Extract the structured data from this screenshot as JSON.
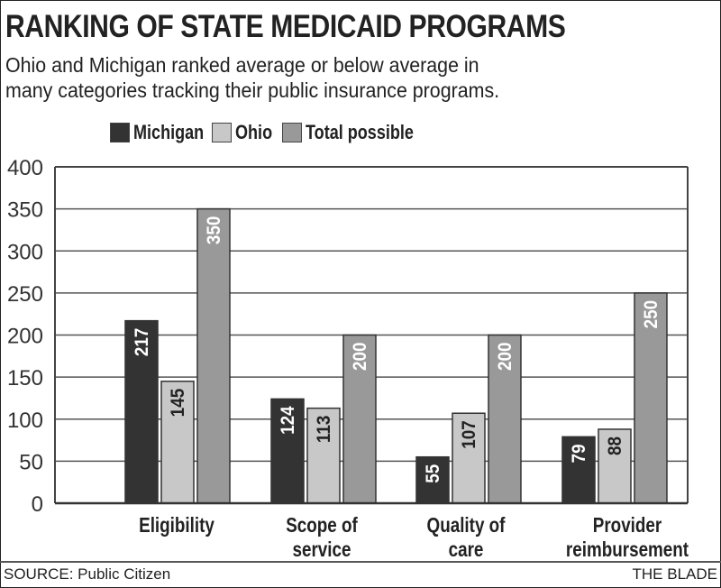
{
  "header": {
    "title": "RANKING OF STATE MEDICAID PROGRAMS",
    "subtitle_line1": "Ohio and Michigan ranked average or below average in",
    "subtitle_line2": "many categories tracking their public insurance programs."
  },
  "footer": {
    "source": "SOURCE: Public Citizen",
    "credit": "THE BLADE"
  },
  "colors": {
    "Michigan": "#333333",
    "Ohio": "#c8c8c8",
    "Total possible": "#999999"
  },
  "chart_data": {
    "type": "bar",
    "title": "RANKING OF STATE MEDICAID PROGRAMS",
    "subtitle": "Ohio and Michigan ranked average or below average in many categories tracking their public insurance programs.",
    "xlabel": "",
    "ylabel": "",
    "ylim": [
      0,
      400
    ],
    "yticks": [
      0,
      50,
      100,
      150,
      200,
      250,
      300,
      350,
      400
    ],
    "grid": true,
    "legend_position": "top",
    "categories": [
      "Eligibility",
      "Scope of service",
      "Quality of care",
      "Provider reimbursement"
    ],
    "category_label_lines": [
      [
        "Eligibility"
      ],
      [
        "Scope of",
        "service"
      ],
      [
        "Quality of",
        "care"
      ],
      [
        "Provider",
        "reimbursement"
      ]
    ],
    "series": [
      {
        "name": "Michigan",
        "values": [
          217,
          124,
          55,
          79
        ]
      },
      {
        "name": "Ohio",
        "values": [
          145,
          113,
          107,
          88
        ]
      },
      {
        "name": "Total possible",
        "values": [
          350,
          200,
          200,
          250
        ]
      }
    ]
  }
}
